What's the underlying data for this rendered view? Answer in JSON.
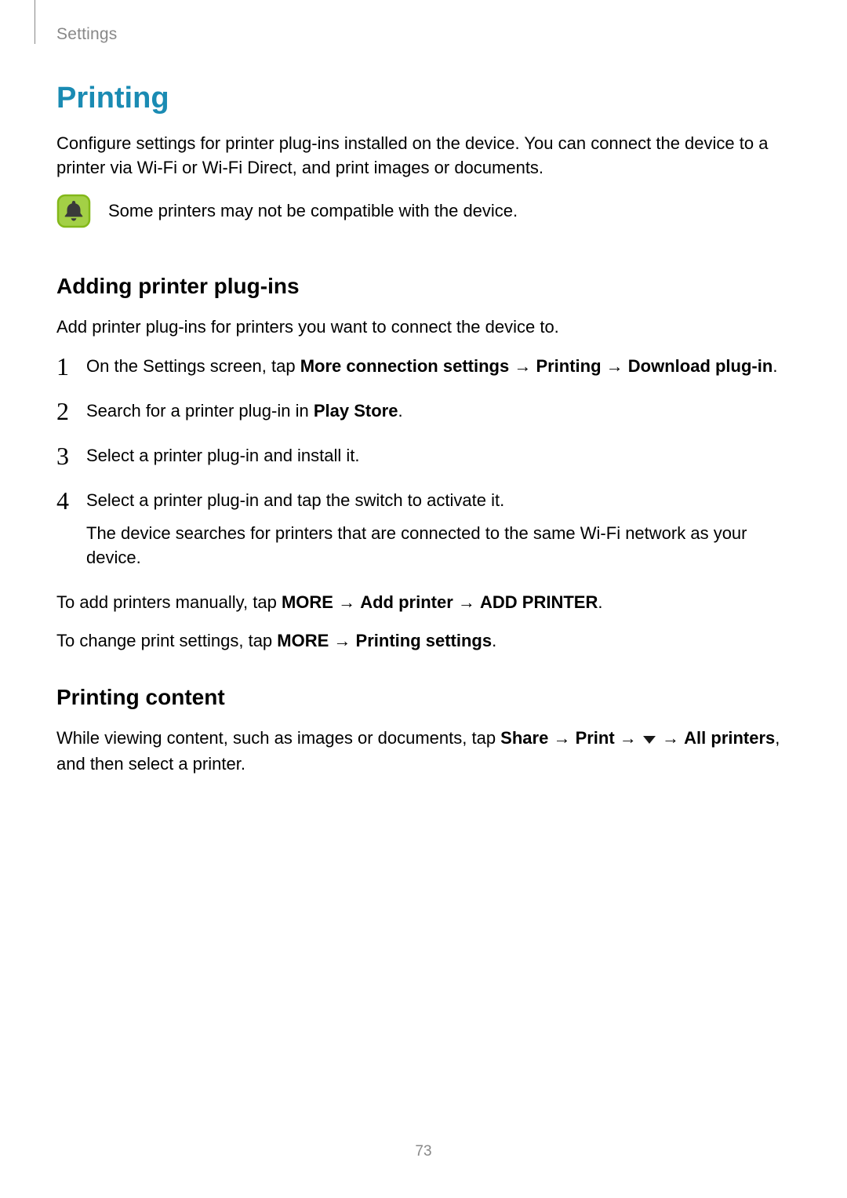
{
  "header": {
    "section_label": "Settings"
  },
  "h1": "Printing",
  "intro_para": "Configure settings for printer plug-ins installed on the device. You can connect the device to a printer via Wi-Fi or Wi-Fi Direct, and print images or documents.",
  "note": {
    "text": "Some printers may not be compatible with the device.",
    "icon_colors": {
      "border": "#83b81a",
      "fill": "#a3d046",
      "bell": "#3a3a3a"
    }
  },
  "sub1": {
    "heading": "Adding printer plug-ins",
    "intro": "Add printer plug-ins for printers you want to connect the device to.",
    "steps": [
      {
        "segments": [
          {
            "t": "On the Settings screen, tap "
          },
          {
            "t": "More connection settings",
            "b": true
          },
          {
            "t": " → "
          },
          {
            "t": "Printing",
            "b": true
          },
          {
            "t": " → "
          },
          {
            "t": "Download plug-in",
            "b": true
          },
          {
            "t": "."
          }
        ]
      },
      {
        "segments": [
          {
            "t": "Search for a printer plug-in in "
          },
          {
            "t": "Play Store",
            "b": true
          },
          {
            "t": "."
          }
        ]
      },
      {
        "segments": [
          {
            "t": "Select a printer plug-in and install it."
          }
        ]
      },
      {
        "segments": [
          {
            "t": "Select a printer plug-in and tap the switch to activate it."
          }
        ],
        "sub": "The device searches for printers that are connected to the same Wi-Fi network as your device."
      }
    ],
    "after1": {
      "segments": [
        {
          "t": "To add printers manually, tap "
        },
        {
          "t": "MORE",
          "b": true
        },
        {
          "t": " → "
        },
        {
          "t": "Add printer",
          "b": true
        },
        {
          "t": " → "
        },
        {
          "t": "ADD PRINTER",
          "b": true
        },
        {
          "t": "."
        }
      ]
    },
    "after2": {
      "segments": [
        {
          "t": "To change print settings, tap "
        },
        {
          "t": "MORE",
          "b": true
        },
        {
          "t": " → "
        },
        {
          "t": "Printing settings",
          "b": true
        },
        {
          "t": "."
        }
      ]
    }
  },
  "sub2": {
    "heading": "Printing content",
    "para": {
      "segments": [
        {
          "t": "While viewing content, such as images or documents, tap "
        },
        {
          "t": "Share",
          "b": true
        },
        {
          "t": " → "
        },
        {
          "t": "Print",
          "b": true
        },
        {
          "t": " → "
        },
        {
          "icon": "dropdown"
        },
        {
          "t": " → "
        },
        {
          "t": "All printers",
          "b": true
        },
        {
          "t": ", and then select a printer."
        }
      ]
    }
  },
  "page_number": "73",
  "colors": {
    "heading_teal": "#1a8bb3",
    "muted_gray": "#888888",
    "text": "#000000",
    "dropdown_fill": "#1a1a1a"
  }
}
